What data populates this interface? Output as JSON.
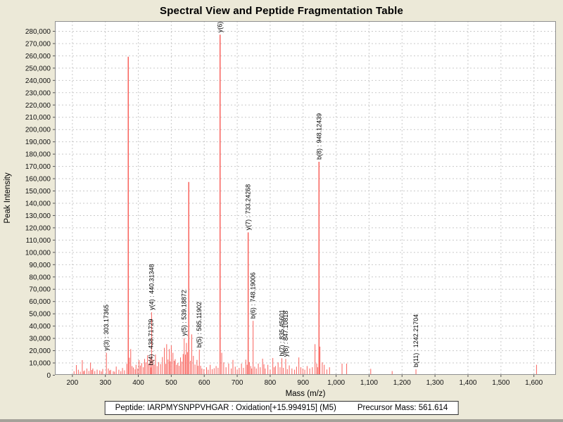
{
  "footer": {
    "peptide_label": "Peptide: IARPMYSNPPVHGAR : Oxidation[+15.994915] (M5)",
    "precursor_label": "Precursor Mass: 561.614",
    "peptide": "IARPMYSNPPVHGAR",
    "modification": "Oxidation[+15.994915] (M5)",
    "precursor_mass": "561.614"
  },
  "colors": {
    "background": "#ece9d8",
    "plot_bg": "#ffffff",
    "grid": "#c9c9c9",
    "border": "#8f8f8f",
    "tick": "#555555",
    "text": "#111111",
    "peak": "#f9625c"
  },
  "chart_data": {
    "type": "bar",
    "variant": "mass-spectrum-sticks",
    "title": "Spectral View and Peptide Fragmentation Table",
    "xlabel": "Mass (m/z)",
    "ylabel": "Peak Intensity",
    "xlim": [
      148,
      1668
    ],
    "ylim": [
      0,
      288000
    ],
    "grid": true,
    "x_ticks": [
      [
        200,
        "200"
      ],
      [
        300,
        "300"
      ],
      [
        400,
        "400"
      ],
      [
        500,
        "500"
      ],
      [
        600,
        "600"
      ],
      [
        700,
        "700"
      ],
      [
        800,
        "800"
      ],
      [
        900,
        "900"
      ],
      [
        1000,
        "1,000"
      ],
      [
        1100,
        "1,100"
      ],
      [
        1200,
        "1,200"
      ],
      [
        1300,
        "1,300"
      ],
      [
        1400,
        "1,400"
      ],
      [
        1500,
        "1,500"
      ],
      [
        1600,
        "1,600"
      ]
    ],
    "y_ticks": [
      [
        0,
        "0"
      ],
      [
        10000,
        "10,000"
      ],
      [
        20000,
        "20,000"
      ],
      [
        30000,
        "30,000"
      ],
      [
        40000,
        "40,000"
      ],
      [
        50000,
        "50,000"
      ],
      [
        60000,
        "60,000"
      ],
      [
        70000,
        "70,000"
      ],
      [
        80000,
        "80,000"
      ],
      [
        90000,
        "90,000"
      ],
      [
        100000,
        "100,000"
      ],
      [
        110000,
        "110,000"
      ],
      [
        120000,
        "120,000"
      ],
      [
        130000,
        "130,000"
      ],
      [
        140000,
        "140,000"
      ],
      [
        150000,
        "150,000"
      ],
      [
        160000,
        "160,000"
      ],
      [
        170000,
        "170,000"
      ],
      [
        180000,
        "180,000"
      ],
      [
        190000,
        "190,000"
      ],
      [
        200000,
        "200,000"
      ],
      [
        210000,
        "210,000"
      ],
      [
        220000,
        "220,000"
      ],
      [
        230000,
        "230,000"
      ],
      [
        240000,
        "240,000"
      ],
      [
        250000,
        "250,000"
      ],
      [
        260000,
        "260,000"
      ],
      [
        270000,
        "270,000"
      ],
      [
        280000,
        "280,000"
      ]
    ],
    "labeled_peaks": [
      {
        "ion": "y(3)",
        "mz": 303.17365,
        "intensity": 18000,
        "label": "y(3) : 303.17365"
      },
      {
        "ion": "b(4)",
        "mz": 438.71729,
        "intensity": 6000,
        "label": "b(4) : 438.71729"
      },
      {
        "ion": "y(4)",
        "mz": 440.31348,
        "intensity": 51000,
        "label": "y(4) : 440.31348"
      },
      {
        "ion": "y(5)",
        "mz": 539.18872,
        "intensity": 30000,
        "label": "y(5) : 539.18872"
      },
      {
        "ion": "b(5)",
        "mz": 585.11902,
        "intensity": 20500,
        "label": "b(5) : 585.11902"
      },
      {
        "ion": "y(6)",
        "mz": 648.0,
        "intensity": 277000,
        "label": "y(6) :"
      },
      {
        "ion": "y(7)",
        "mz": 733.24268,
        "intensity": 116000,
        "label": "y(7) : 733.24268"
      },
      {
        "ion": "b(6)",
        "mz": 748.19006,
        "intensity": 44000,
        "label": "b(6) : 748.19006"
      },
      {
        "ion": "b(7)",
        "mz": 835.45601,
        "intensity": 13500,
        "label": "b(7) : 835.45601"
      },
      {
        "ion": "y(8)",
        "mz": 847.10818,
        "intensity": 13000,
        "label": "y(8) : 847.10818"
      },
      {
        "ion": "b(8)",
        "mz": 948.12439,
        "intensity": 173500,
        "label": "b(8) : 948.12439"
      },
      {
        "ion": "b(11)",
        "mz": 1242.21704,
        "intensity": 4500,
        "label": "b(11) : 1242.21704"
      }
    ],
    "unlabeled_peaks": [
      [
        205,
        3000
      ],
      [
        212,
        8000
      ],
      [
        218,
        4200
      ],
      [
        224,
        2600
      ],
      [
        230,
        12000
      ],
      [
        234,
        3000
      ],
      [
        237,
        3600
      ],
      [
        244,
        5200
      ],
      [
        250,
        3200
      ],
      [
        255,
        10000
      ],
      [
        259,
        4000
      ],
      [
        262,
        5200
      ],
      [
        268,
        3100
      ],
      [
        275,
        4300
      ],
      [
        283,
        3600
      ],
      [
        288,
        2800
      ],
      [
        292,
        4800
      ],
      [
        309,
        5200
      ],
      [
        313,
        3500
      ],
      [
        316,
        4100
      ],
      [
        324,
        3000
      ],
      [
        328,
        2600
      ],
      [
        333,
        6800
      ],
      [
        341,
        4200
      ],
      [
        347,
        3000
      ],
      [
        352,
        5600
      ],
      [
        358,
        3700
      ],
      [
        365,
        9000
      ],
      [
        369.5,
        259000
      ],
      [
        373,
        14000
      ],
      [
        377,
        21000
      ],
      [
        381,
        7200
      ],
      [
        385,
        6000
      ],
      [
        390,
        4500
      ],
      [
        393,
        8200
      ],
      [
        398,
        5200
      ],
      [
        402,
        12000
      ],
      [
        406,
        7600
      ],
      [
        410,
        9600
      ],
      [
        415,
        6200
      ],
      [
        419,
        13000
      ],
      [
        423,
        10200
      ],
      [
        428,
        16000
      ],
      [
        432,
        9200
      ],
      [
        436,
        14500
      ],
      [
        444,
        12500
      ],
      [
        448,
        8400
      ],
      [
        452,
        16500
      ],
      [
        457,
        7200
      ],
      [
        462,
        10400
      ],
      [
        468,
        8800
      ],
      [
        473,
        14500
      ],
      [
        479,
        22000
      ],
      [
        483,
        9000
      ],
      [
        486,
        25000
      ],
      [
        490,
        12500
      ],
      [
        494,
        21000
      ],
      [
        497,
        11000
      ],
      [
        500,
        24000
      ],
      [
        505,
        18000
      ],
      [
        509,
        11500
      ],
      [
        512,
        12800
      ],
      [
        516,
        8200
      ],
      [
        520,
        9800
      ],
      [
        524,
        7400
      ],
      [
        528,
        14200
      ],
      [
        532,
        10800
      ],
      [
        536,
        17000
      ],
      [
        543,
        16500
      ],
      [
        546,
        26000
      ],
      [
        549,
        18500
      ],
      [
        553,
        157000
      ],
      [
        558,
        11500
      ],
      [
        562,
        33000
      ],
      [
        567,
        15500
      ],
      [
        572,
        8400
      ],
      [
        578,
        12200
      ],
      [
        581,
        7400
      ],
      [
        589,
        7400
      ],
      [
        593,
        5200
      ],
      [
        599,
        4600
      ],
      [
        607,
        6200
      ],
      [
        612,
        4200
      ],
      [
        618,
        8200
      ],
      [
        624,
        4700
      ],
      [
        630,
        5400
      ],
      [
        636,
        7200
      ],
      [
        642,
        5800
      ],
      [
        653,
        18000
      ],
      [
        659,
        10200
      ],
      [
        666,
        6200
      ],
      [
        674,
        9200
      ],
      [
        682,
        5200
      ],
      [
        687,
        12200
      ],
      [
        694,
        6700
      ],
      [
        700,
        4200
      ],
      [
        706,
        5700
      ],
      [
        713,
        9200
      ],
      [
        719,
        5700
      ],
      [
        726,
        12400
      ],
      [
        730,
        8200
      ],
      [
        737,
        10400
      ],
      [
        741,
        7200
      ],
      [
        744,
        5200
      ],
      [
        753,
        6700
      ],
      [
        758,
        5200
      ],
      [
        764,
        9200
      ],
      [
        770,
        6200
      ],
      [
        777,
        13200
      ],
      [
        781,
        8700
      ],
      [
        785,
        5200
      ],
      [
        793,
        8200
      ],
      [
        800,
        4200
      ],
      [
        808,
        13700
      ],
      [
        812,
        6200
      ],
      [
        816,
        7200
      ],
      [
        824,
        10200
      ],
      [
        830,
        6200
      ],
      [
        840,
        5700
      ],
      [
        852,
        4700
      ],
      [
        858,
        7700
      ],
      [
        866,
        5200
      ],
      [
        874,
        4200
      ],
      [
        880,
        6700
      ],
      [
        887,
        14200
      ],
      [
        893,
        6200
      ],
      [
        899,
        5200
      ],
      [
        905,
        4200
      ],
      [
        912,
        7200
      ],
      [
        920,
        5200
      ],
      [
        928,
        6200
      ],
      [
        936,
        25000
      ],
      [
        941,
        9200
      ],
      [
        944,
        6200
      ],
      [
        951,
        23000
      ],
      [
        958,
        10200
      ],
      [
        964,
        8200
      ],
      [
        972,
        4400
      ],
      [
        980,
        6200
      ],
      [
        1018,
        9200
      ],
      [
        1032,
        9200
      ],
      [
        1105,
        4900
      ],
      [
        1170,
        3100
      ],
      [
        1608,
        8200
      ]
    ]
  }
}
